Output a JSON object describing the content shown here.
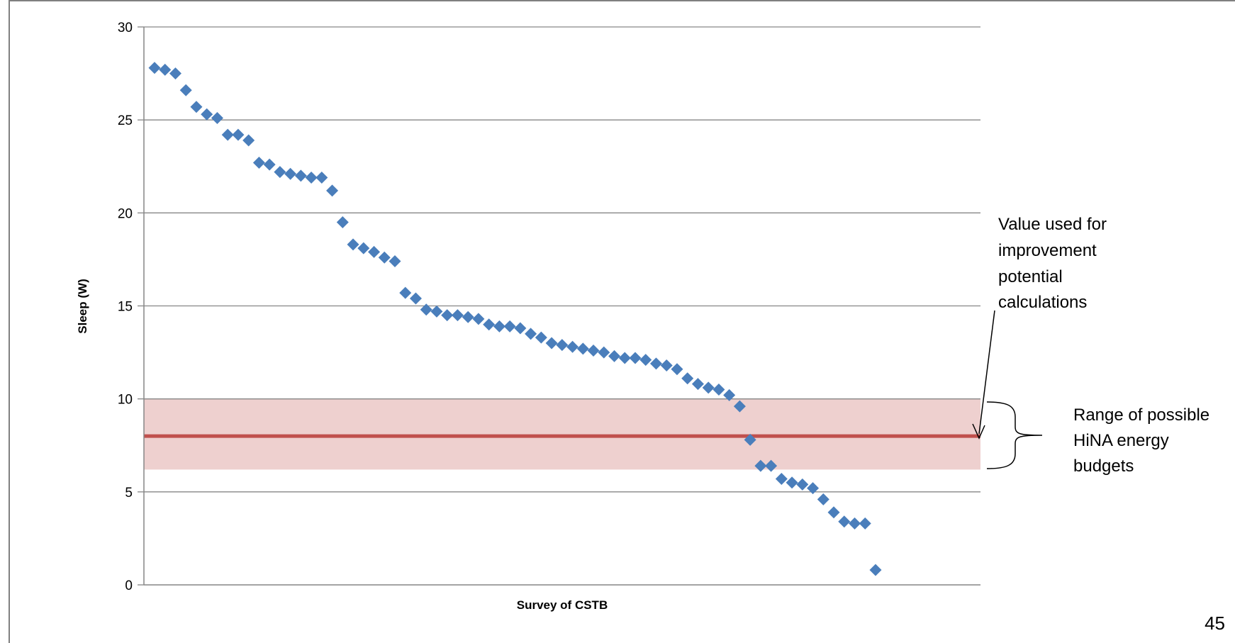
{
  "chart_data": {
    "type": "scatter",
    "title": "",
    "xlabel": "Survey of CSTB",
    "ylabel": "Sleep (W)",
    "ylim": [
      0,
      30
    ],
    "yticks": [
      0,
      5,
      10,
      15,
      20,
      25,
      30
    ],
    "grid": true,
    "marker": "diamond",
    "series": [
      {
        "color": "#4a7ebb",
        "values": [
          27.8,
          27.7,
          27.5,
          26.6,
          25.7,
          25.3,
          25.1,
          24.2,
          24.2,
          23.9,
          22.7,
          22.6,
          22.2,
          22.1,
          22.0,
          21.9,
          21.9,
          21.2,
          19.5,
          18.3,
          18.1,
          17.9,
          17.6,
          17.4,
          15.7,
          15.4,
          14.8,
          14.7,
          14.5,
          14.5,
          14.4,
          14.3,
          14.0,
          13.9,
          13.9,
          13.8,
          13.5,
          13.3,
          13.0,
          12.9,
          12.8,
          12.7,
          12.6,
          12.5,
          12.3,
          12.2,
          12.2,
          12.1,
          11.9,
          11.8,
          11.6,
          11.1,
          10.8,
          10.6,
          10.5,
          10.2,
          9.6,
          7.8,
          6.4,
          6.4,
          5.7,
          5.5,
          5.4,
          5.2,
          4.6,
          3.9,
          3.4,
          3.3,
          3.3,
          0.8
        ]
      }
    ],
    "reference_line": {
      "value": 8,
      "color": "#c0504d"
    },
    "range_band": {
      "min": 6.2,
      "max": 10,
      "color": "#d99694"
    },
    "annotations": {
      "value_label": [
        "Value used for",
        "improvement",
        "potential",
        "calculations"
      ],
      "range_label": [
        "Range of possible",
        "HiNA energy",
        "budgets"
      ]
    }
  },
  "page_number": "45"
}
